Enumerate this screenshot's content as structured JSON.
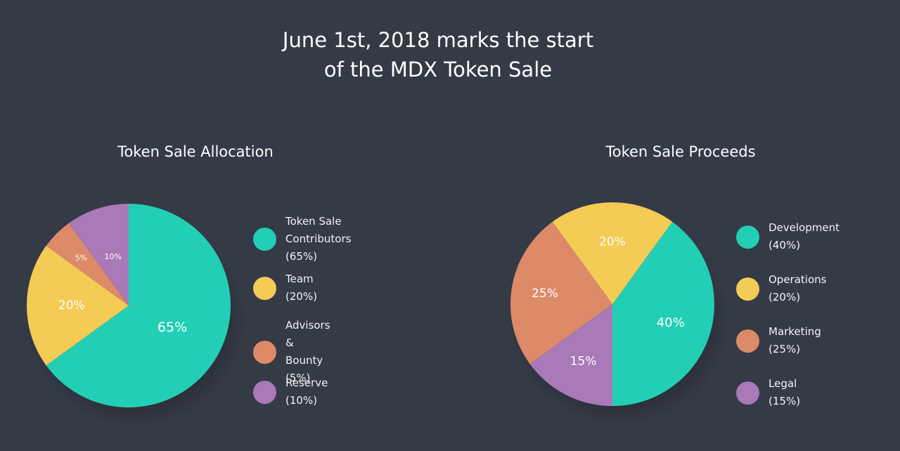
{
  "headline": {
    "line1": "June 1st, 2018 marks the start",
    "line2": "of the MDX Token Sale"
  },
  "chart_data": [
    {
      "type": "pie",
      "title": "Token Sale Allocation",
      "slices": [
        {
          "name": "Token Sale Contributors",
          "value": 65,
          "label": "65%",
          "legend_line1": "Token Sale",
          "legend_line2": "Contributors (65%)",
          "color": "#22cfb5"
        },
        {
          "name": "Team",
          "value": 20,
          "label": "20%",
          "legend_line1": "Team (20%)",
          "legend_line2": "",
          "color": "#f4cb55"
        },
        {
          "name": "Advisors & Bounty",
          "value": 5,
          "label": "5%",
          "legend_line1": "Advisors &",
          "legend_line2": "Bounty (5%)",
          "color": "#dd8a68"
        },
        {
          "name": "Reserve",
          "value": 10,
          "label": "10%",
          "legend_line1": "Reserve (10%)",
          "legend_line2": "",
          "color": "#a979b8"
        }
      ],
      "legend_placement": "right"
    },
    {
      "type": "pie",
      "title": "Token Sale Proceeds",
      "slices": [
        {
          "name": "Development",
          "value": 40,
          "label": "40%",
          "legend_line1": "Development (40%)",
          "legend_line2": "",
          "color": "#22cfb5"
        },
        {
          "name": "Operations",
          "value": 20,
          "label": "20%",
          "legend_line1": "Operations (20%)",
          "legend_line2": "",
          "color": "#f4cb55"
        },
        {
          "name": "Marketing",
          "value": 25,
          "label": "25%",
          "legend_line1": "Marketing (25%)",
          "legend_line2": "",
          "color": "#dd8a68"
        },
        {
          "name": "Legal",
          "value": 15,
          "label": "15%",
          "legend_line1": "Legal (15%)",
          "legend_line2": "",
          "color": "#a979b8"
        }
      ],
      "legend_placement": "right"
    }
  ]
}
